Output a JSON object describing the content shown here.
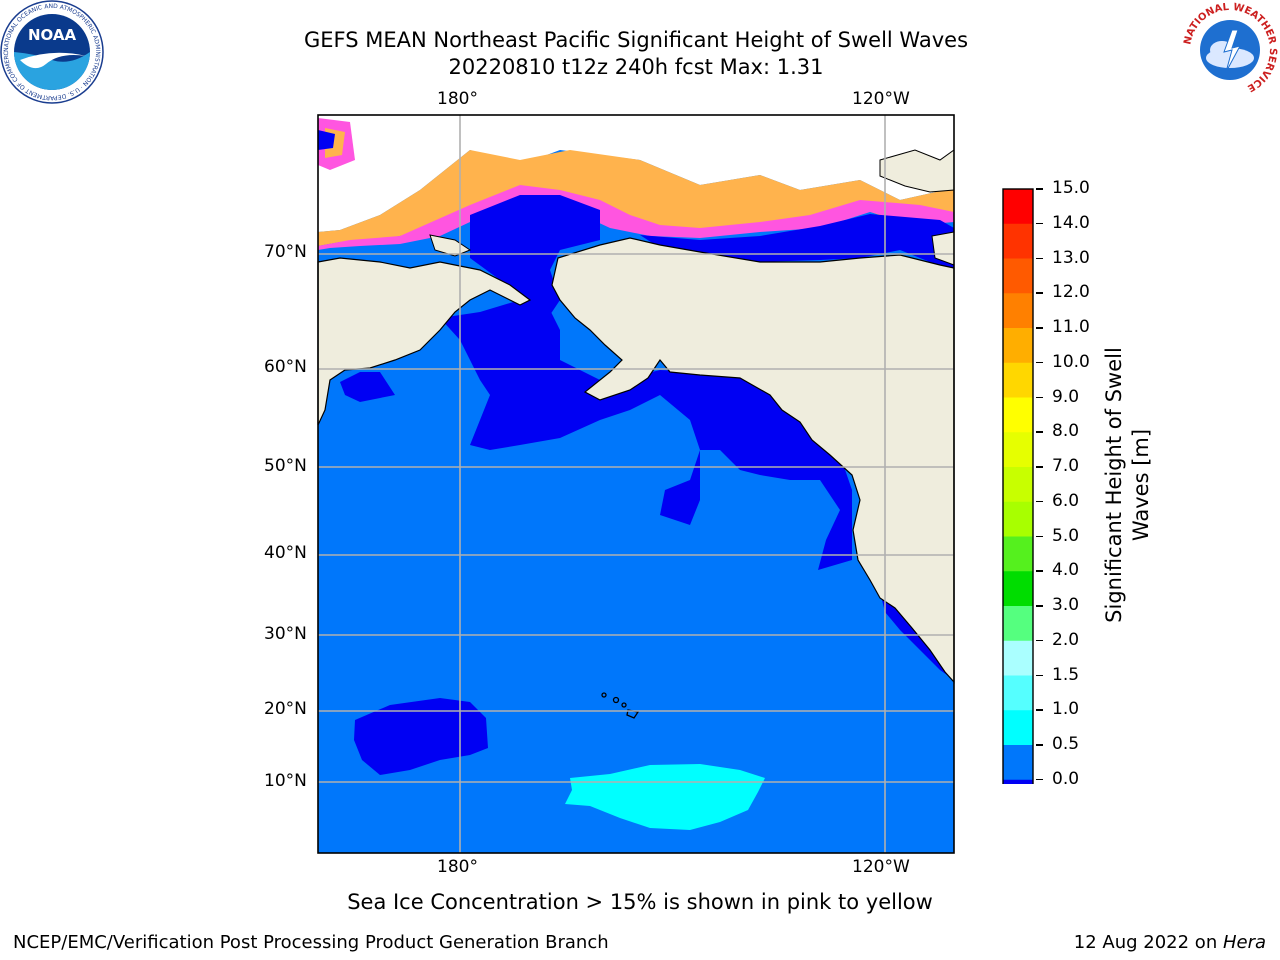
{
  "title": {
    "line1": "GEFS MEAN Northeast Pacific Significant Height of Swell Waves",
    "line2": "20220810 t12z 240h fcst   Max: 1.31"
  },
  "map": {
    "lon_ticks": [
      "180°",
      "120°W"
    ],
    "lat_ticks": [
      "70°N",
      "60°N",
      "50°N",
      "40°N",
      "30°N",
      "20°N",
      "10°N"
    ],
    "colors": {
      "land": "#efeddd",
      "ocean_default": "#0077fb",
      "swell_low": "#0000f3",
      "swell_mid": "#00ffff",
      "ice_pink": "#ff55e0",
      "ice_orange": "#ffb34d",
      "grid": "#b0b0b0"
    }
  },
  "colorbar": {
    "label": "Significant Height of Swell\nWaves [m]",
    "ticks": [
      "15.0",
      "14.0",
      "13.0",
      "12.0",
      "11.0",
      "10.0",
      "9.0",
      "8.0",
      "7.0",
      "6.0",
      "5.0",
      "4.0",
      "3.0",
      "2.0",
      "1.5",
      "1.0",
      "0.5",
      "0.0"
    ],
    "colors": [
      "#ff0000",
      "#ff3300",
      "#ff5a00",
      "#ff8000",
      "#ffae00",
      "#ffd700",
      "#ffff00",
      "#e6ff00",
      "#c8ff00",
      "#a8ff00",
      "#55f01e",
      "#00dd00",
      "#55ff7f",
      "#aaffff",
      "#55ffff",
      "#00ffff",
      "#0077fb",
      "#0000f3"
    ]
  },
  "note": "Sea Ice Concentration > 15% is shown in pink to yellow",
  "footer": {
    "left": "NCEP/EMC/Verification Post Processing Product Generation Branch",
    "right_date": "12 Aug 2022 on ",
    "right_machine": "Hera"
  },
  "logos": {
    "noaa_text": "NOAA",
    "noaa_ring": "NATIONAL OCEANIC AND ATMOSPHERIC ADMINISTRATION · U.S. DEPARTMENT OF COMMERCE",
    "nws_ring": "NATIONAL WEATHER SERVICE"
  }
}
